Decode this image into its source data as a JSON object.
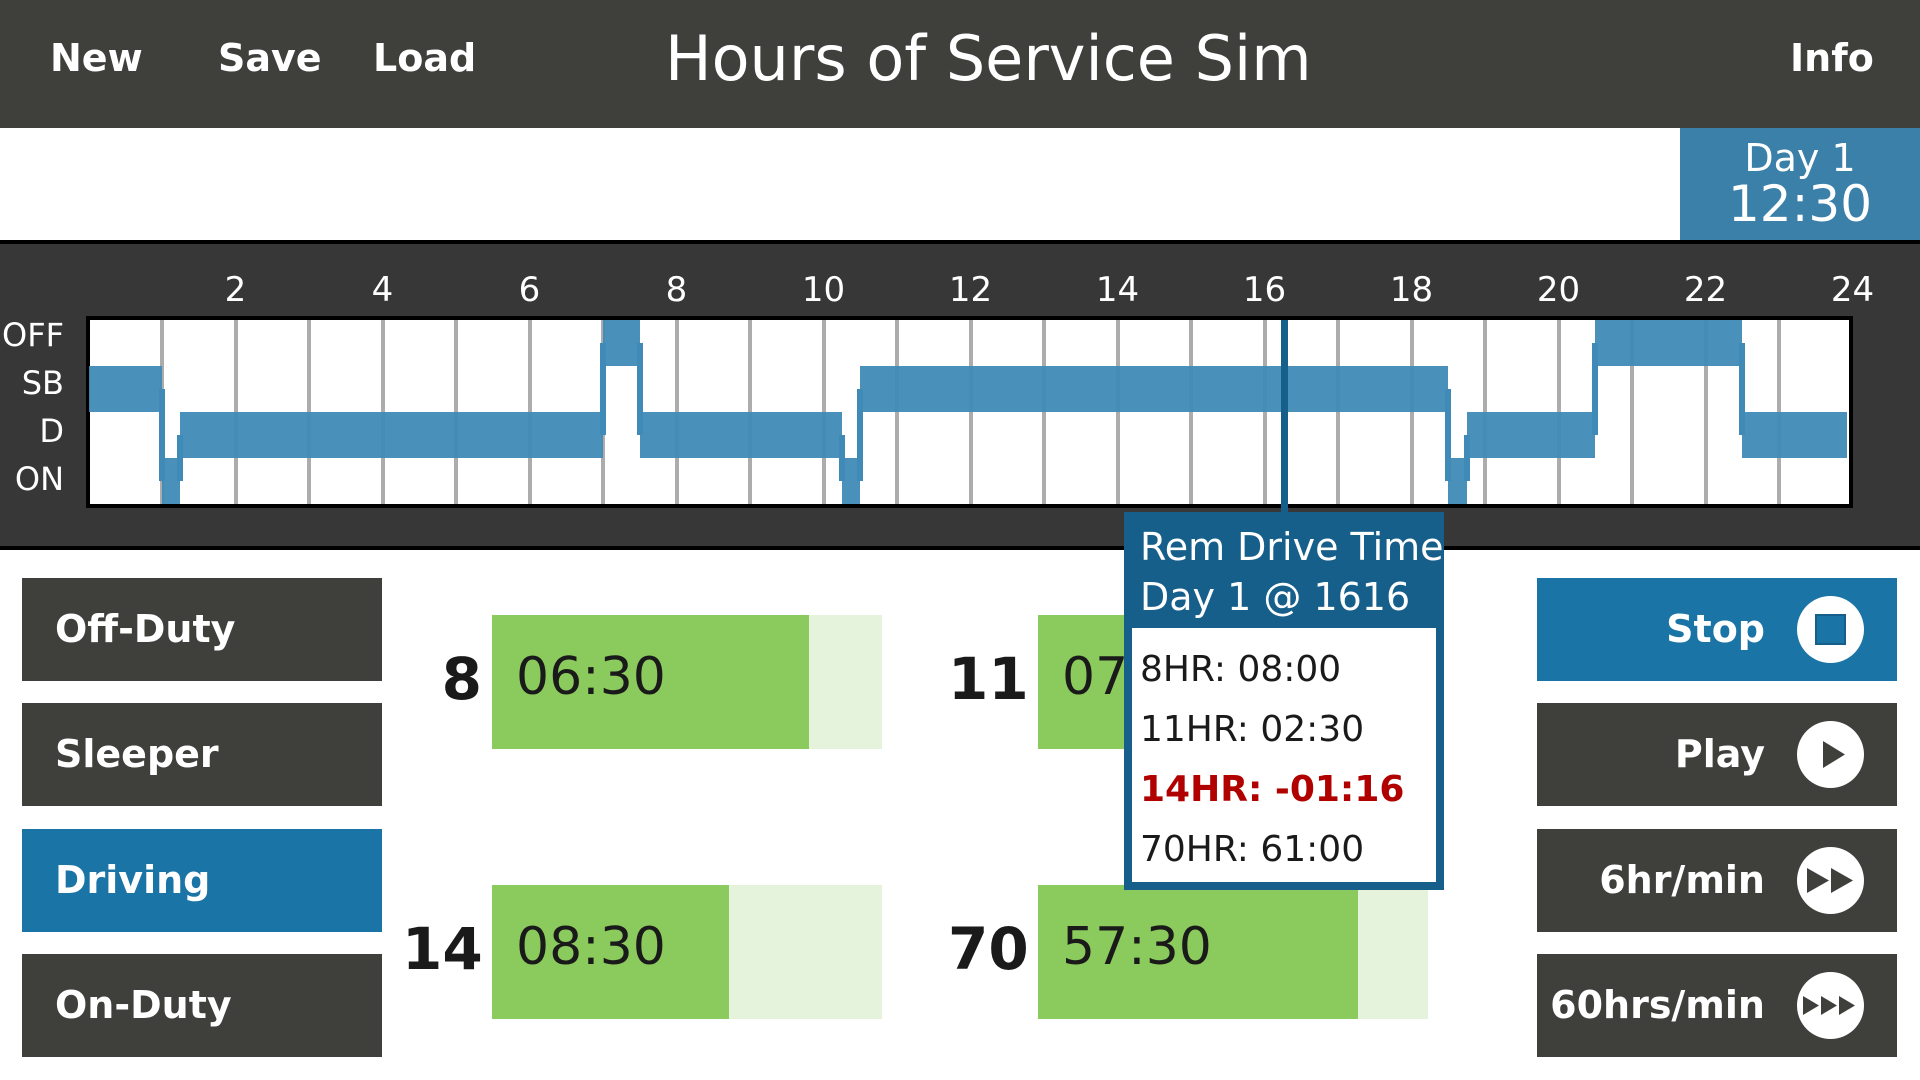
{
  "header": {
    "buttons": {
      "new": "New",
      "save": "Save",
      "load": "Load",
      "info": "Info"
    },
    "title": "Hours of Service Sim"
  },
  "clock": {
    "day": "Day 1",
    "time": "12:30"
  },
  "chart_data": {
    "type": "table",
    "title": "Duty status log grid",
    "x_ticks": [
      "2",
      "4",
      "6",
      "8",
      "10",
      "12",
      "14",
      "16",
      "18",
      "20",
      "22",
      "24"
    ],
    "rows": [
      "OFF",
      "SB",
      "D",
      "ON"
    ],
    "xlim": [
      0,
      24
    ],
    "grid": true,
    "segments": [
      {
        "status": "SB",
        "start": 0.0,
        "end": 1.0
      },
      {
        "status": "ON",
        "start": 1.0,
        "end": 1.25
      },
      {
        "status": "D",
        "start": 1.25,
        "end": 7.0
      },
      {
        "status": "OFF",
        "start": 7.0,
        "end": 7.5
      },
      {
        "status": "D",
        "start": 7.5,
        "end": 10.25
      },
      {
        "status": "ON",
        "start": 10.25,
        "end": 10.5
      },
      {
        "status": "SB",
        "start": 10.5,
        "end": 18.5
      },
      {
        "status": "ON",
        "start": 18.5,
        "end": 18.75
      },
      {
        "status": "D",
        "start": 18.75,
        "end": 20.5
      },
      {
        "status": "OFF",
        "start": 20.5,
        "end": 22.5
      },
      {
        "status": "D",
        "start": 22.5,
        "end": 24.0
      }
    ],
    "cursor_hour": 16.27
  },
  "status_buttons": [
    {
      "label": "Off-Duty",
      "active": false
    },
    {
      "label": "Sleeper",
      "active": false
    },
    {
      "label": "Driving",
      "active": true
    },
    {
      "label": "On-Duty",
      "active": false
    }
  ],
  "gauges": [
    {
      "limit": "8",
      "value": "06:30",
      "fill_pct": 81.25
    },
    {
      "limit": "11",
      "value": "07:30",
      "fill_pct": 68.2
    },
    {
      "limit": "14",
      "value": "08:30",
      "fill_pct": 60.7
    },
    {
      "limit": "70",
      "value": "57:30",
      "fill_pct": 82.1
    }
  ],
  "tooltip": {
    "title_line1": "Rem Drive Time",
    "title_line2": "Day 1 @ 1616",
    "rows": [
      {
        "text": "8HR: 08:00",
        "warning": false
      },
      {
        "text": "11HR: 02:30",
        "warning": false
      },
      {
        "text": "14HR: -01:16",
        "warning": true
      },
      {
        "text": "70HR: 61:00",
        "warning": false
      }
    ]
  },
  "controls": [
    {
      "label": "Stop",
      "icon": "stop-icon",
      "active": true
    },
    {
      "label": "Play",
      "icon": "play-icon",
      "active": false
    },
    {
      "label": "6hr/min",
      "icon": "fast-forward-icon",
      "active": false
    },
    {
      "label": "60hrs/min",
      "icon": "triple-forward-icon",
      "active": false
    }
  ],
  "colors": {
    "header_bg": "#3f3f3c",
    "accent_blue": "#1b74a6",
    "segment_blue": "#3f8ab7",
    "tooltip_blue": "#155f8a",
    "gauge_fill": "#8bca5c",
    "gauge_bg": "#e5f3dd",
    "warning_red": "#b00000"
  }
}
